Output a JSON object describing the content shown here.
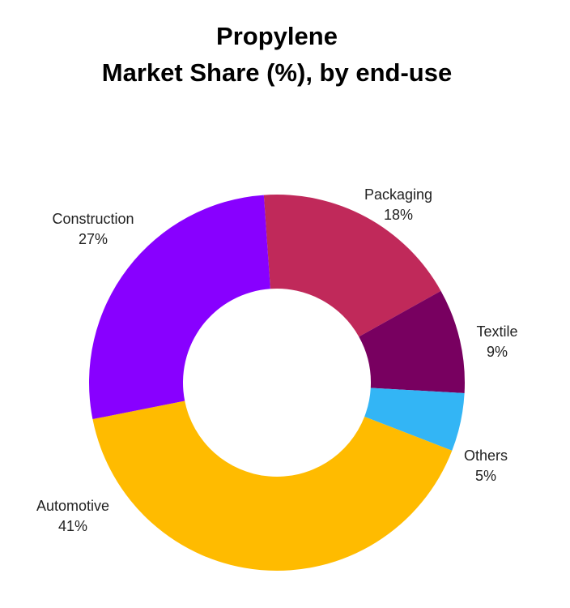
{
  "chart_data": {
    "type": "donut",
    "title": [
      "Propylene",
      "Market Share (%), by end-use"
    ],
    "categories": [
      "Packaging",
      "Textile",
      "Others",
      "Automotive",
      "Construction"
    ],
    "values": [
      18,
      9,
      5,
      41,
      27
    ],
    "value_labels": [
      "18%",
      "9%",
      "5%",
      "41%",
      "27%"
    ],
    "colors": [
      "#c0295a",
      "#780060",
      "#33b5f5",
      "#ffbb00",
      "#8800ff"
    ]
  }
}
